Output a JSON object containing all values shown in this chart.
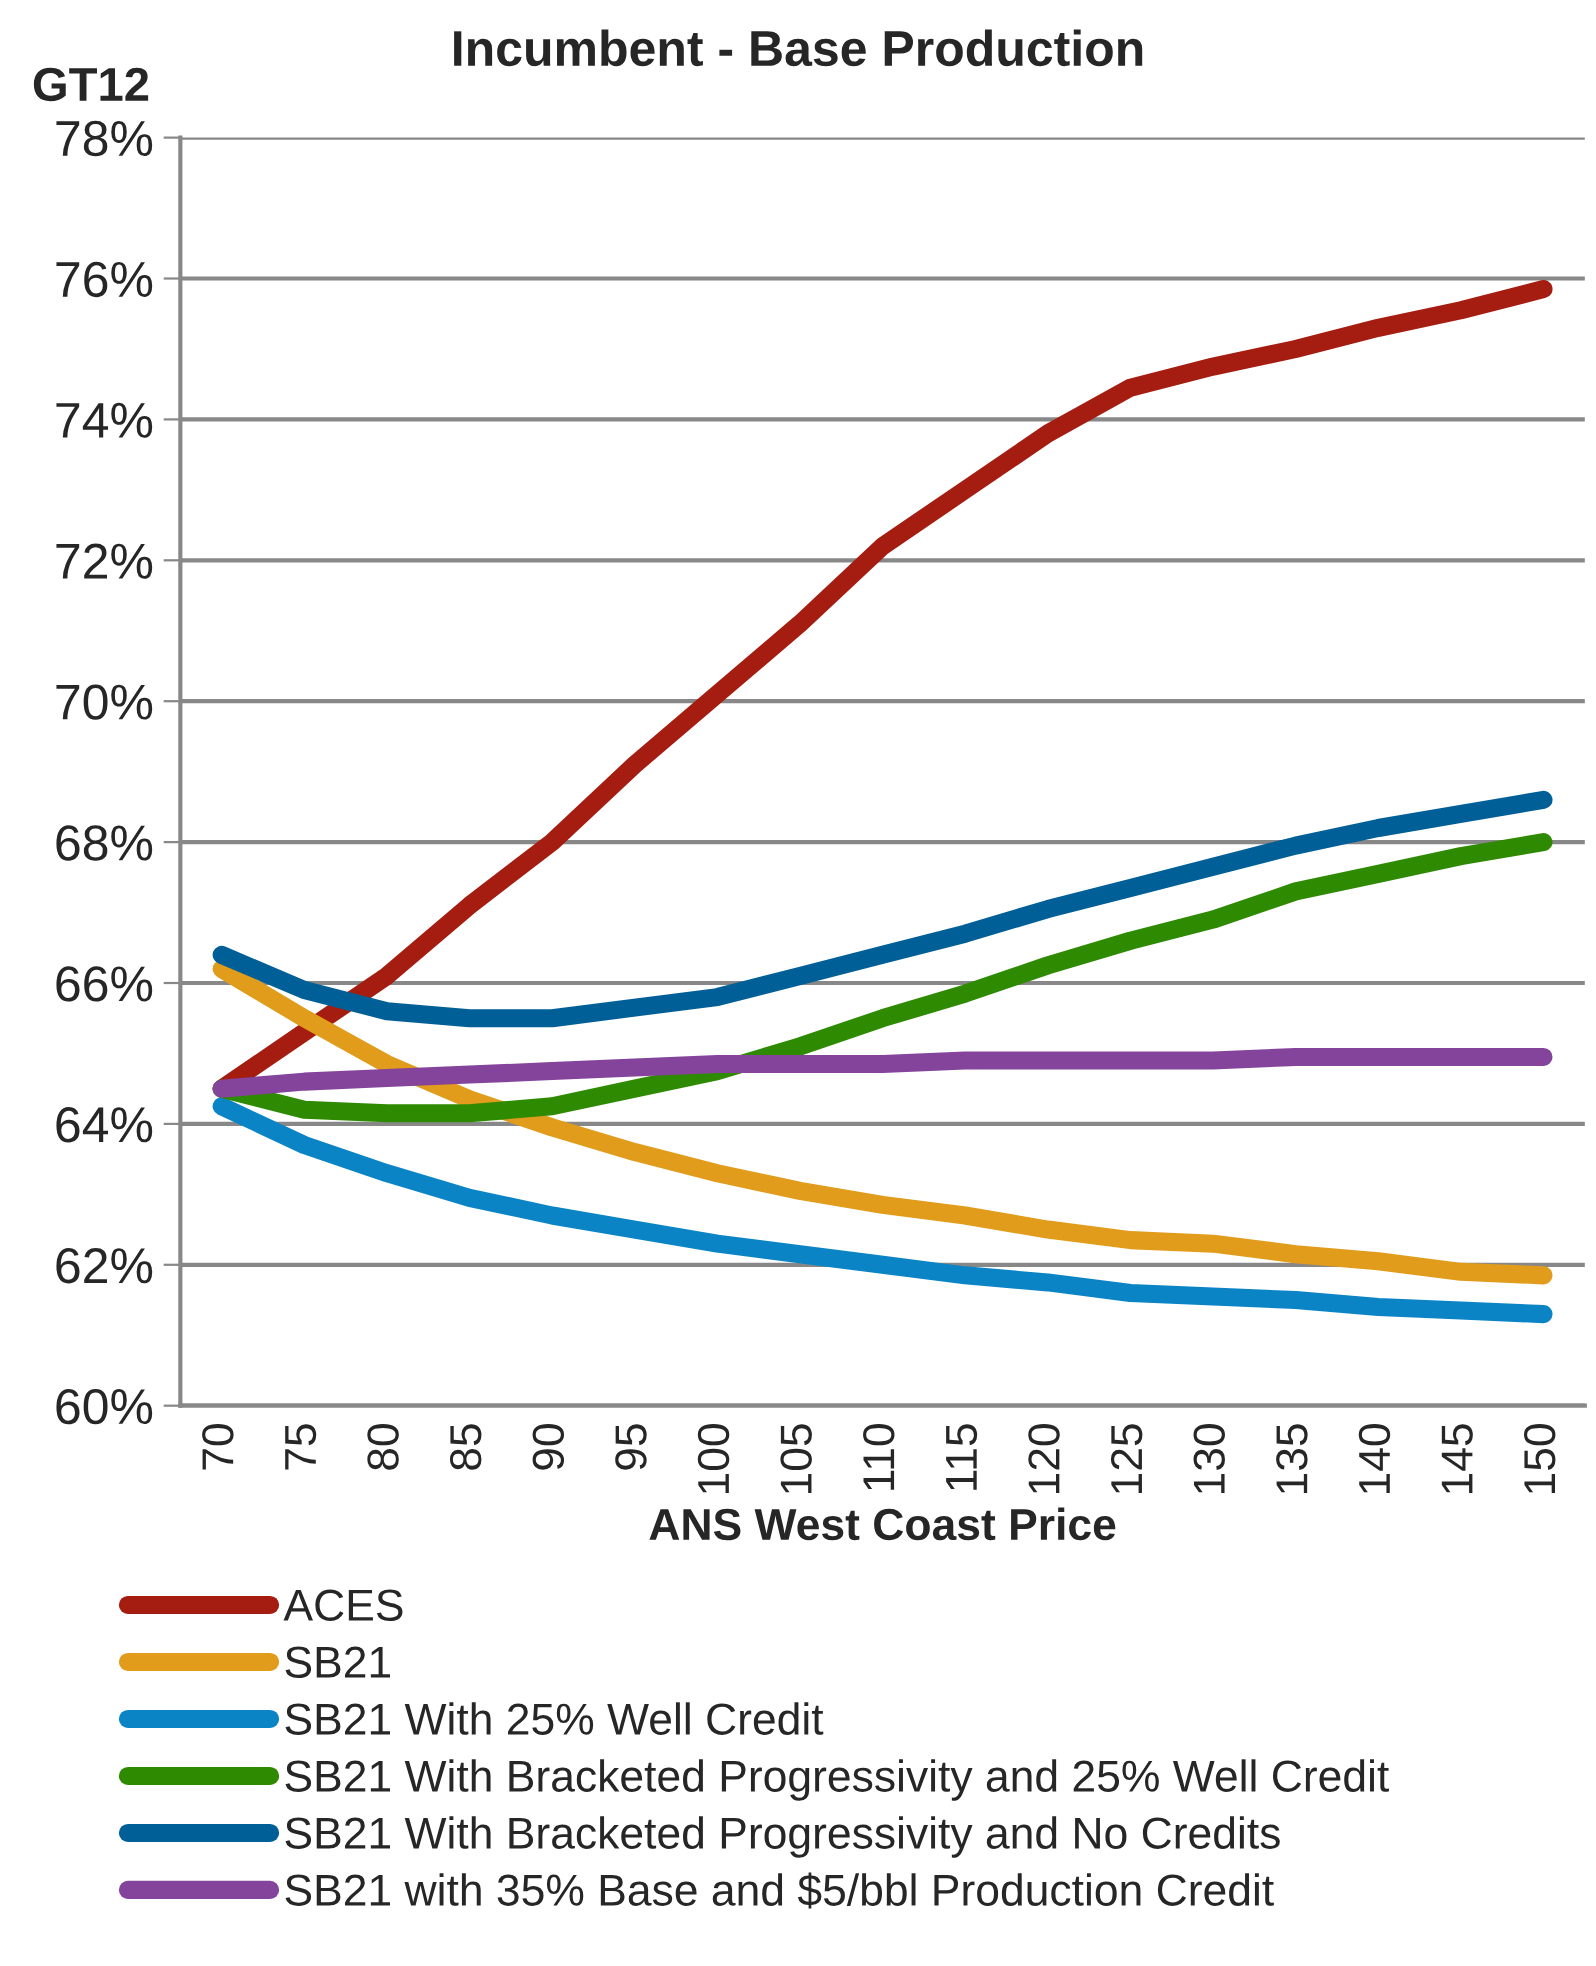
{
  "chart_data": {
    "type": "line",
    "title": "Incumbent - Base Production",
    "annotations": [
      "GT12"
    ],
    "xlabel": "ANS West Coast Price",
    "categories": [
      "70",
      "75",
      "80",
      "85",
      "90",
      "95",
      "100",
      "105",
      "110",
      "115",
      "120",
      "125",
      "130",
      "135",
      "140",
      "145",
      "150"
    ],
    "series": [
      {
        "name": "ACES",
        "color": "#a51c11",
        "values": [
          64.5,
          65.3,
          66.1,
          67.1,
          68.0,
          69.1,
          70.1,
          71.1,
          72.2,
          73.0,
          73.8,
          74.45,
          74.75,
          75.0,
          75.3,
          75.55,
          75.85
        ]
      },
      {
        "name": "SB21",
        "color": "#e09c1a",
        "values": [
          66.2,
          65.5,
          64.85,
          64.35,
          63.95,
          63.6,
          63.3,
          63.05,
          62.85,
          62.7,
          62.5,
          62.35,
          62.3,
          62.15,
          62.05,
          61.9,
          61.85
        ]
      },
      {
        "name": "SB21 With 25% Well Credit",
        "color": "#0b84c6",
        "values": [
          64.25,
          63.7,
          63.3,
          62.95,
          62.7,
          62.5,
          62.3,
          62.15,
          62.0,
          61.85,
          61.75,
          61.6,
          61.55,
          61.5,
          61.4,
          61.35,
          61.3
        ]
      },
      {
        "name": "SB21 With Bracketed Progressivity and 25% Well Credit",
        "color": "#2e8a00",
        "values": [
          64.5,
          64.2,
          64.15,
          64.15,
          64.25,
          64.5,
          64.75,
          65.1,
          65.5,
          65.85,
          66.25,
          66.6,
          66.9,
          67.3,
          67.55,
          67.8,
          68.0
        ]
      },
      {
        "name": "SB21 With Bracketed Progressivity and No Credits",
        "color": "#005f96",
        "values": [
          66.4,
          65.9,
          65.6,
          65.5,
          65.5,
          65.65,
          65.8,
          66.1,
          66.4,
          66.7,
          67.05,
          67.35,
          67.65,
          67.95,
          68.2,
          68.4,
          68.6
        ]
      },
      {
        "name": "SB21 with 35% Base and $5/bbl Production Credit",
        "color": "#84449b",
        "values": [
          64.5,
          64.6,
          64.65,
          64.7,
          64.75,
          64.8,
          64.85,
          64.85,
          64.85,
          64.9,
          64.9,
          64.9,
          64.9,
          64.95,
          64.95,
          64.95,
          64.95
        ]
      }
    ],
    "ylim": [
      60,
      78
    ],
    "yticks": [
      {
        "value": 60,
        "label": "60%"
      },
      {
        "value": 62,
        "label": "62%"
      },
      {
        "value": 64,
        "label": "64%"
      },
      {
        "value": 66,
        "label": "66%"
      },
      {
        "value": 68,
        "label": "68%"
      },
      {
        "value": 70,
        "label": "70%"
      },
      {
        "value": 72,
        "label": "72%"
      },
      {
        "value": 74,
        "label": "74%"
      },
      {
        "value": 76,
        "label": "76%"
      },
      {
        "value": 78,
        "label": "78%"
      }
    ],
    "grid": "y",
    "legend": "bottom",
    "marker": "none",
    "line_style": "solid"
  }
}
